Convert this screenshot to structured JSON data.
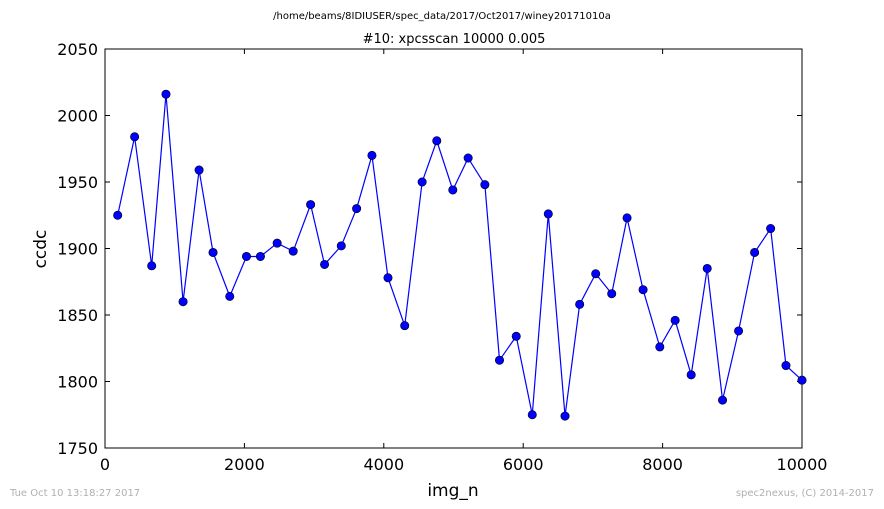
{
  "chart_data": {
    "type": "line",
    "suptitle": "/home/beams/8IDIUSER/spec_data/2017/Oct2017/winey20171010a",
    "title": "#10: xpcsscan 10000 0.005",
    "xlabel": "img_n",
    "ylabel": "ccdc",
    "xlim": [
      0,
      10000
    ],
    "ylim": [
      1750,
      2050
    ],
    "xticks": [
      0,
      2000,
      4000,
      6000,
      8000,
      10000
    ],
    "yticks": [
      1750,
      1800,
      1850,
      1900,
      1950,
      2000,
      2050
    ],
    "grid": false,
    "line_color": "#0000ff",
    "marker": "circle",
    "series": [
      {
        "x": [
          182,
          425,
          670,
          875,
          1120,
          1350,
          1550,
          1790,
          2030,
          2230,
          2470,
          2700,
          2950,
          3150,
          3390,
          3610,
          3830,
          4060,
          4300,
          4550,
          4760,
          4990,
          5210,
          5450,
          5660,
          5900,
          6130,
          6360,
          6600,
          6810,
          7040,
          7270,
          7490,
          7720,
          7960,
          8180,
          8410,
          8640,
          8860,
          9090,
          9320,
          9550,
          9770,
          10000
        ],
        "y": [
          1925,
          1984,
          1887,
          2016,
          1860,
          1959,
          1897,
          1864,
          1894,
          1894,
          1904,
          1898,
          1933,
          1888,
          1902,
          1930,
          1970,
          1878,
          1842,
          1950,
          1981,
          1944,
          1968,
          1948,
          1816,
          1834,
          1775,
          1926,
          1774,
          1858,
          1881,
          1866,
          1923,
          1869,
          1826,
          1846,
          1805,
          1885,
          1786,
          1838,
          1897,
          1915,
          1812,
          1801
        ]
      }
    ]
  },
  "footer": {
    "left": "Tue Oct 10 13:18:27 2017",
    "right": "spec2nexus, (C) 2014-2017"
  }
}
